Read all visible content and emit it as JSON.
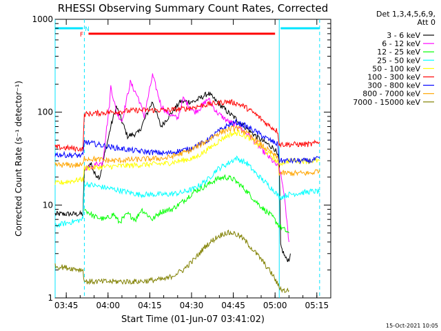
{
  "chart_data": {
    "type": "line",
    "title": "RHESSI Observing Summary Count Rates, Corrected",
    "xlabel": "Start Time (01-Jun-07 03:41:02)",
    "ylabel": "Corrected Count Rate (s⁻¹ detector⁻¹)",
    "x_unit": "minutes since 03:41:02",
    "xlim": [
      0,
      99
    ],
    "ylim": [
      1,
      1000
    ],
    "yscale": "log",
    "x_ticks": [
      {
        "t": 4,
        "label": "03:45"
      },
      {
        "t": 19,
        "label": "04:00"
      },
      {
        "t": 34,
        "label": "04:15"
      },
      {
        "t": 49,
        "label": "04:30"
      },
      {
        "t": 64,
        "label": "04:45"
      },
      {
        "t": 79,
        "label": "05:00"
      },
      {
        "t": 94,
        "label": "05:15"
      }
    ],
    "y_ticks": [
      {
        "v": 1,
        "label": "1"
      },
      {
        "v": 10,
        "label": "10"
      },
      {
        "v": 100,
        "label": "100"
      },
      {
        "v": 1000,
        "label": "1000"
      }
    ],
    "legend": {
      "placement": "right",
      "header": [
        "Det 1,3,4,5,6,9,",
        "Att 0"
      ]
    },
    "series": [
      {
        "name": "3 - 6 keV",
        "color": "#000000",
        "x": [
          0,
          10,
          10.5,
          13,
          14,
          16,
          20,
          22,
          26,
          30,
          35,
          38,
          42,
          45,
          50,
          55,
          58,
          62,
          66,
          70,
          74,
          77,
          79,
          80.5,
          81,
          83,
          84,
          84.5
        ],
        "y": [
          8,
          8,
          24,
          28,
          22,
          20,
          70,
          115,
          55,
          60,
          130,
          70,
          100,
          130,
          130,
          160,
          130,
          100,
          80,
          62,
          50,
          44,
          40,
          30,
          3.6,
          2.6,
          2.6,
          3
        ]
      },
      {
        "name": "6 - 12 keV",
        "color": "#ff00ff",
        "x": [
          10.5,
          13,
          15,
          17,
          19.5,
          20,
          22,
          24,
          27,
          30,
          32,
          35,
          38,
          40,
          44,
          46,
          50,
          52,
          55,
          58,
          62,
          66,
          70,
          74,
          78,
          80.5,
          82,
          84
        ],
        "y": [
          25,
          25,
          28,
          28,
          120,
          190,
          100,
          80,
          210,
          140,
          90,
          250,
          120,
          100,
          85,
          140,
          100,
          110,
          140,
          100,
          80,
          70,
          55,
          40,
          30,
          25,
          15,
          4
        ]
      },
      {
        "name": "12 - 25 keV",
        "color": "#00ff00",
        "x": [
          10.5,
          14,
          18,
          21,
          23,
          26,
          29,
          31,
          35,
          38,
          42,
          46,
          50,
          54,
          58,
          61,
          64,
          68,
          72,
          75,
          78,
          80.5,
          82,
          84
        ],
        "y": [
          9,
          7.5,
          7,
          8,
          6.5,
          8,
          7,
          9,
          7,
          8.5,
          9,
          11,
          14,
          16,
          19,
          20,
          19,
          15,
          11,
          9,
          7.5,
          6,
          5.5,
          5
        ]
      },
      {
        "name": "25 - 50 keV",
        "color": "#00ffff",
        "x": [
          0,
          10,
          10.5,
          15,
          20,
          25,
          30,
          35,
          40,
          45,
          50,
          55,
          58,
          62,
          65,
          69,
          72,
          76,
          79,
          80.5,
          84,
          92,
          95
        ],
        "y": [
          6,
          7,
          17,
          16,
          15,
          14,
          13,
          13,
          13,
          13.5,
          15,
          19,
          24,
          28,
          32,
          28,
          22,
          17,
          14,
          12,
          13,
          14,
          14
        ]
      },
      {
        "name": "50 - 100 keV",
        "color": "#ffff00",
        "x": [
          0,
          10,
          10.5,
          20,
          30,
          40,
          50,
          55,
          60,
          63,
          66,
          70,
          74,
          78,
          80.5,
          84,
          92,
          95
        ],
        "y": [
          17,
          19,
          25,
          26,
          27,
          28,
          32,
          40,
          52,
          58,
          60,
          52,
          42,
          33,
          28,
          30,
          30,
          30
        ]
      },
      {
        "name": "100 - 300 keV",
        "color": "#ff0000",
        "x": [
          0,
          10,
          10.5,
          20,
          30,
          40,
          48,
          54,
          58,
          62,
          65,
          68,
          72,
          76,
          80,
          80.5,
          84,
          92,
          95
        ],
        "y": [
          42,
          40,
          95,
          100,
          105,
          105,
          110,
          120,
          125,
          130,
          125,
          115,
          95,
          75,
          62,
          45,
          45,
          45,
          48
        ]
      },
      {
        "name": "300 - 800 keV",
        "color": "#0000ff",
        "x": [
          0,
          10,
          10.5,
          20,
          30,
          40,
          48,
          54,
          58,
          62,
          65,
          68,
          72,
          76,
          80,
          80.5,
          84,
          92,
          95
        ],
        "y": [
          35,
          34,
          48,
          42,
          38,
          36,
          40,
          48,
          60,
          72,
          78,
          72,
          62,
          52,
          45,
          30,
          30,
          30,
          32
        ]
      },
      {
        "name": "800 - 7000 keV",
        "color": "#ffa500",
        "x": [
          0,
          10,
          10.5,
          20,
          30,
          40,
          48,
          54,
          58,
          62,
          65,
          68,
          72,
          76,
          80,
          80.5,
          84,
          92,
          95
        ],
        "y": [
          27,
          27,
          32,
          30,
          31,
          32,
          38,
          48,
          58,
          65,
          68,
          62,
          50,
          40,
          32,
          22,
          22,
          22,
          24
        ]
      },
      {
        "name": "7000 - 15000 keV",
        "color": "#808000",
        "x": [
          0,
          10,
          10.5,
          20,
          30,
          40,
          46,
          50,
          54,
          58,
          61,
          64,
          67,
          70,
          74,
          78,
          80.5,
          82,
          84
        ],
        "y": [
          2.2,
          2,
          1.5,
          1.5,
          1.5,
          1.6,
          2,
          2.6,
          3.6,
          4.5,
          5,
          5,
          4.5,
          3.6,
          2.6,
          1.8,
          1.3,
          1.2,
          1.2
        ]
      }
    ],
    "bars": [
      {
        "label": "N",
        "color": "#00e5ff",
        "x_start": 0,
        "x_end": 10,
        "y": 800
      },
      {
        "label": "F",
        "color": "#ff0000",
        "x_start": 12,
        "x_end": 79,
        "y": 700
      },
      {
        "label": "",
        "color": "#00e5ff",
        "x_start": 81,
        "x_end": 95,
        "y": 800
      }
    ],
    "markers": [
      {
        "t": 0,
        "color": "#00e5ff",
        "style": "solid"
      },
      {
        "t": 10.5,
        "color": "#00e5ff",
        "style": "dashed"
      },
      {
        "t": 80.5,
        "color": "#00e5ff",
        "style": "solid"
      },
      {
        "t": 95,
        "color": "#00e5ff",
        "style": "dashed"
      }
    ],
    "timestamp": "15-Oct-2021 10:05"
  }
}
